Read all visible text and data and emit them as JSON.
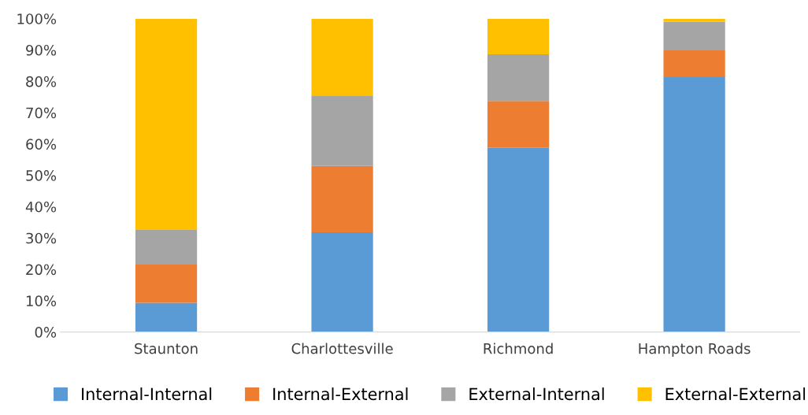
{
  "chart_data": {
    "type": "bar",
    "stacked": true,
    "categories": [
      "Staunton",
      "Charlottesville",
      "Richmond",
      "Hampton Roads"
    ],
    "series": [
      {
        "name": "Internal-Internal",
        "color": "#5b9bd5",
        "values": [
          9.3,
          31.8,
          58.8,
          81.3
        ]
      },
      {
        "name": "Internal-External",
        "color": "#ed7d31",
        "values": [
          12.2,
          21.2,
          14.9,
          8.6
        ]
      },
      {
        "name": "External-Internal",
        "color": "#a5a5a5",
        "values": [
          11.1,
          22.5,
          14.9,
          9.1
        ]
      },
      {
        "name": "External-External",
        "color": "#ffc000",
        "values": [
          67.4,
          24.5,
          11.4,
          1.0
        ]
      }
    ],
    "ylim": [
      0,
      100
    ],
    "yticks": [
      {
        "value": 0,
        "label": "0%"
      },
      {
        "value": 10,
        "label": "10%"
      },
      {
        "value": 20,
        "label": "20%"
      },
      {
        "value": 30,
        "label": "30%"
      },
      {
        "value": 40,
        "label": "40%"
      },
      {
        "value": 50,
        "label": "50%"
      },
      {
        "value": 60,
        "label": "60%"
      },
      {
        "value": 70,
        "label": "70%"
      },
      {
        "value": 80,
        "label": "80%"
      },
      {
        "value": 90,
        "label": "90%"
      },
      {
        "value": 100,
        "label": "100%"
      }
    ],
    "grid": false,
    "legend": "bottom"
  }
}
